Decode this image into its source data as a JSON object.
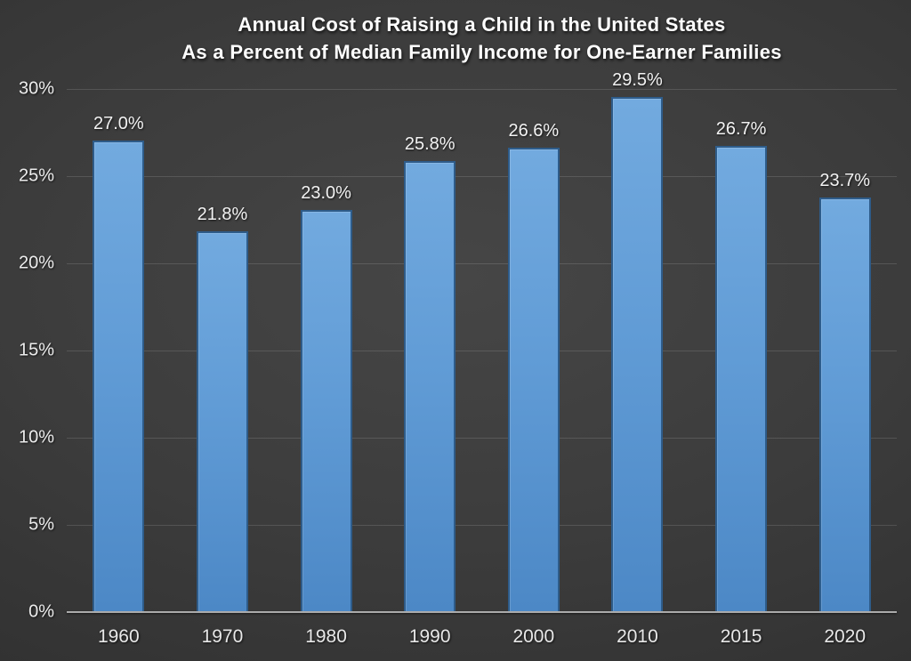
{
  "chart_data": {
    "type": "bar",
    "title": "Annual Cost of Raising a Child in the United States",
    "subtitle": "As a Percent of Median Family Income for One-Earner Families",
    "categories": [
      "1960",
      "1970",
      "1980",
      "1990",
      "2000",
      "2010",
      "2015",
      "2020"
    ],
    "values": [
      27.0,
      21.8,
      23.0,
      25.8,
      26.6,
      29.5,
      26.7,
      23.7
    ],
    "data_labels": [
      "27.0%",
      "21.8%",
      "23.0%",
      "25.8%",
      "26.6%",
      "29.5%",
      "26.7%",
      "23.7%"
    ],
    "y_tick_labels": [
      "0%",
      "5%",
      "10%",
      "15%",
      "20%",
      "25%",
      "30%"
    ],
    "ylim": [
      0,
      30
    ],
    "y_step": 5,
    "xlabel": "",
    "ylabel": "",
    "grid": true,
    "legend": "none",
    "colors": {
      "bar_fill_top": "#72aadf",
      "bar_fill_bottom": "#4c88c6",
      "bar_border": "#2e5c8a",
      "background_center": "#464646",
      "background_edge": "#232323",
      "text": "#ececec",
      "gridline": "rgba(255,255,255,0.13)",
      "axis_line": "#ababab"
    }
  }
}
